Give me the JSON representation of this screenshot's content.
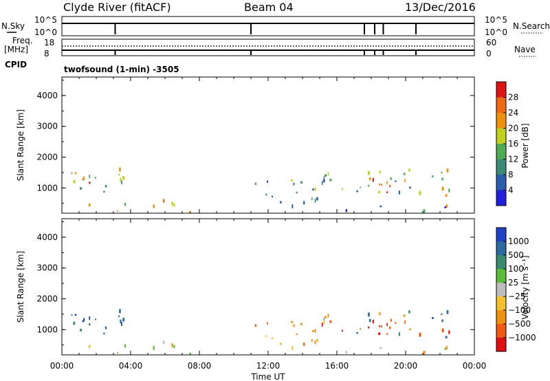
{
  "header": {
    "station": "Clyde River (fitACF)",
    "beam": "Beam 04",
    "date": "13/Dec/2016"
  },
  "top_panels": {
    "nsky_label": "N.Sky",
    "nsky_ticks": [
      "10^5",
      "10^0"
    ],
    "nsearch_label": "N.Search",
    "nsearch_ticks": [
      "10^5",
      "10^0"
    ],
    "freq_label_1": "Freq.",
    "freq_label_2": "[MHz]",
    "freq_ticks": [
      "18",
      "8"
    ],
    "nave_label": "Nave",
    "nave_ticks": [
      "60",
      "0"
    ],
    "cpid_label": "CPID",
    "cpid_text": "twofsound (1-min) -3505",
    "drop_times": [
      3.1,
      11.0,
      17.6,
      18.2,
      18.7,
      20.6
    ]
  },
  "chart_data": [
    {
      "type": "heatmap",
      "panel": "power",
      "ylabel": "Slant Range [km]",
      "ylim": [
        180,
        4600
      ],
      "yticks": [
        "1000",
        "2000",
        "3000",
        "4000"
      ],
      "xlim": [
        0,
        24
      ],
      "colorbar_label": "Power [dB]",
      "colorbar_ticks": [
        "4",
        "8",
        "12",
        "16",
        "20",
        "24",
        "28"
      ],
      "colors": [
        "#1f1fdc",
        "#2a5fb0",
        "#3a8a78",
        "#4faa55",
        "#c0d020",
        "#f09010",
        "#ef6a10",
        "#dd1515"
      ]
    },
    {
      "type": "heatmap",
      "panel": "velocity",
      "ylabel": "Slant Range [km]",
      "ylim": [
        180,
        4600
      ],
      "yticks": [
        "1000",
        "2000",
        "3000",
        "4000"
      ],
      "xlim": [
        0,
        24
      ],
      "xticks": [
        "00:00",
        "04:00",
        "08:00",
        "12:00",
        "16:00",
        "20:00",
        "00:00"
      ],
      "xlabel": "Time UT",
      "colorbar_label": "Velocity [m s⁻¹]",
      "colorbar_ticks": [
        "1000",
        "500",
        "100",
        "25",
        "−25",
        "−100",
        "−500",
        "−1000"
      ],
      "colors": [
        "#2040c8",
        "#2b6aa0",
        "#3a8a70",
        "#5bbb3a",
        "#bdbdbd",
        "#f5c030",
        "#f09010",
        "#ef5a10",
        "#e01010"
      ]
    }
  ],
  "scatter_regions": [
    {
      "t0": 0.1,
      "t1": 3.6,
      "r0": 800,
      "r1": 1550,
      "d": 0.55,
      "pw": [
        2,
        3,
        4,
        5,
        6
      ],
      "vl": [
        0,
        1,
        2
      ]
    },
    {
      "t0": 0.6,
      "t1": 1.8,
      "r0": 950,
      "r1": 1500,
      "d": 0.6,
      "pw": [
        5,
        6,
        7
      ],
      "vl": [
        0,
        1
      ]
    },
    {
      "t0": 2.6,
      "t1": 4.1,
      "r0": 1000,
      "r1": 1550,
      "d": 0.5,
      "pw": [
        3,
        4,
        5
      ],
      "vl": [
        0,
        1
      ]
    },
    {
      "t0": 0.2,
      "t1": 11.0,
      "r0": 180,
      "r1": 550,
      "d": 0.22,
      "pw": [
        3,
        4,
        5,
        6
      ],
      "vl": [
        3,
        4,
        5
      ]
    },
    {
      "t0": 5.2,
      "t1": 7.0,
      "r0": 180,
      "r1": 800,
      "d": 0.3,
      "pw": [
        4,
        5,
        6
      ],
      "vl": [
        3,
        4,
        5,
        6
      ]
    },
    {
      "t0": 11.0,
      "t1": 15.5,
      "r0": 250,
      "r1": 1200,
      "d": 0.35,
      "pw": [
        0,
        1,
        2,
        3
      ],
      "vl": [
        5,
        6,
        7
      ]
    },
    {
      "t0": 12.5,
      "t1": 15.5,
      "r0": 500,
      "r1": 1300,
      "d": 0.35,
      "pw": [
        2,
        3,
        4
      ],
      "vl": [
        6,
        7
      ]
    },
    {
      "t0": 15.0,
      "t1": 22.5,
      "r0": 600,
      "r1": 1550,
      "d": 0.55,
      "pw": [
        1,
        2,
        3,
        4,
        5
      ],
      "vl": [
        6,
        7,
        8,
        1,
        2
      ]
    },
    {
      "t0": 17.8,
      "t1": 19.3,
      "r0": 600,
      "r1": 1200,
      "d": 0.75,
      "pw": [
        6,
        7
      ],
      "vl": [
        7,
        8
      ]
    },
    {
      "t0": 20.8,
      "t1": 22.8,
      "r0": 1100,
      "r1": 1550,
      "d": 0.5,
      "pw": [
        2,
        3,
        4
      ],
      "vl": [
        0,
        1
      ]
    },
    {
      "t0": 21.0,
      "t1": 22.8,
      "r0": 180,
      "r1": 600,
      "d": 0.3,
      "pw": [
        3,
        5,
        6
      ],
      "vl": [
        4,
        5,
        6
      ]
    },
    {
      "t0": 11.0,
      "t1": 22.8,
      "r0": 180,
      "r1": 400,
      "d": 0.15,
      "pw": [
        0,
        1
      ],
      "vl": [
        3,
        4
      ]
    }
  ]
}
